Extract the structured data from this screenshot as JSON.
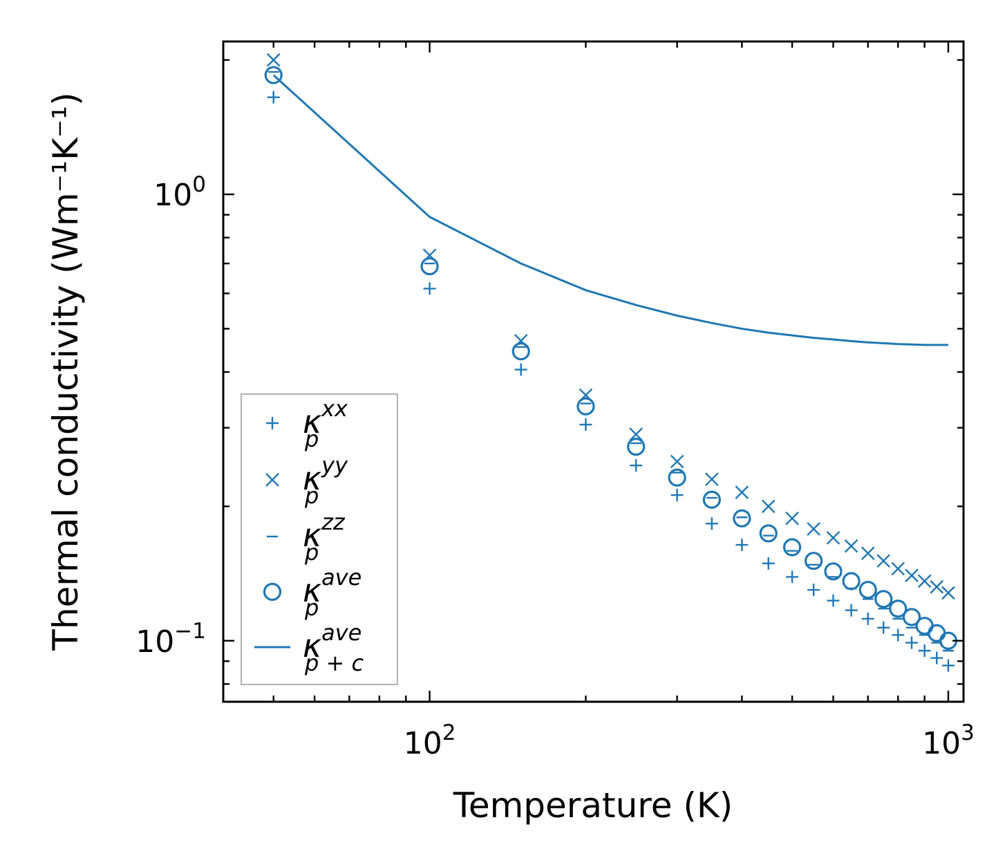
{
  "chart_data": {
    "type": "scatter",
    "xscale": "log",
    "yscale": "log",
    "xlabel": "Temperature (K)",
    "ylabel": "Thermal conductivity (Wm⁻¹K⁻¹)",
    "xlim": [
      40,
      1070
    ],
    "ylim": [
      0.073,
      2.2
    ],
    "color": "#1f77b4",
    "x_ticks": [
      {
        "base": "10",
        "exp": "2",
        "value": 100
      },
      {
        "base": "10",
        "exp": "3",
        "value": 1000
      }
    ],
    "y_ticks": [
      {
        "base": "10",
        "exp": "0",
        "value": 1
      },
      {
        "base": "10",
        "exp": "−1",
        "value": 0.1
      }
    ],
    "x": [
      50,
      100,
      150,
      200,
      250,
      300,
      350,
      400,
      450,
      500,
      550,
      600,
      650,
      700,
      750,
      800,
      850,
      900,
      950,
      1000
    ],
    "series": [
      {
        "name": "kappa_p^xx",
        "symbol": "κ",
        "sub": "p",
        "sup": "xx",
        "marker": "plus",
        "values": [
          1.65,
          0.615,
          0.405,
          0.305,
          0.247,
          0.212,
          0.183,
          0.164,
          0.149,
          0.139,
          0.13,
          0.123,
          0.117,
          0.112,
          0.107,
          0.103,
          0.099,
          0.095,
          0.0915,
          0.088
        ]
      },
      {
        "name": "kappa_p^yy",
        "symbol": "κ",
        "sub": "p",
        "sup": "yy",
        "marker": "x",
        "values": [
          2.0,
          0.73,
          0.47,
          0.355,
          0.29,
          0.252,
          0.23,
          0.215,
          0.2,
          0.188,
          0.178,
          0.17,
          0.163,
          0.157,
          0.151,
          0.145,
          0.14,
          0.136,
          0.132,
          0.128
        ]
      },
      {
        "name": "kappa_p^zz",
        "symbol": "κ",
        "sub": "p",
        "sup": "zz",
        "marker": "minus",
        "values": [
          1.88,
          0.7,
          0.455,
          0.34,
          0.277,
          0.238,
          0.209,
          0.189,
          0.172,
          0.159,
          0.148,
          0.139,
          0.131,
          0.124,
          0.118,
          0.112,
          0.107,
          0.103,
          0.099,
          0.095
        ]
      },
      {
        "name": "kappa_p^ave",
        "symbol": "κ",
        "sub": "p",
        "sup": "ave",
        "marker": "circle",
        "values": [
          1.85,
          0.69,
          0.445,
          0.335,
          0.272,
          0.232,
          0.207,
          0.188,
          0.174,
          0.162,
          0.151,
          0.143,
          0.136,
          0.13,
          0.124,
          0.118,
          0.113,
          0.108,
          0.104,
          0.1
        ]
      },
      {
        "name": "kappa_p+c^ave",
        "symbol": "κ",
        "sub": "p + c",
        "sup": "ave",
        "marker": "line",
        "values": [
          1.85,
          0.89,
          0.7,
          0.61,
          0.565,
          0.535,
          0.515,
          0.5,
          0.49,
          0.483,
          0.477,
          0.473,
          0.469,
          0.466,
          0.464,
          0.462,
          0.461,
          0.46,
          0.46,
          0.46
        ]
      }
    ],
    "legend_position": "lower-left"
  }
}
